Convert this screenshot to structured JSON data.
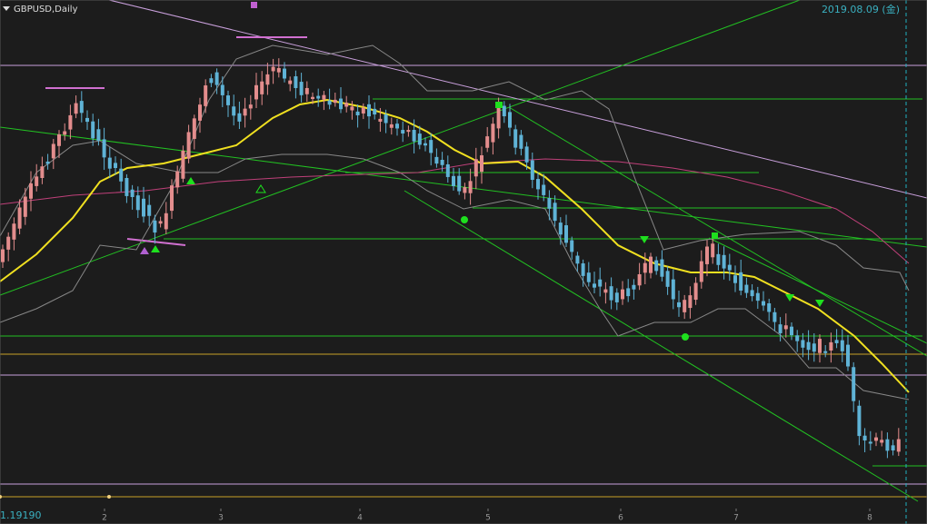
{
  "header": {
    "symbol": "GBPUSD,Daily",
    "date": "2019.08.09 (金)"
  },
  "price_label": "1.19190",
  "x_axis": {
    "labels": [
      "2",
      "3",
      "4",
      "5",
      "6",
      "7",
      "8"
    ]
  }
}
